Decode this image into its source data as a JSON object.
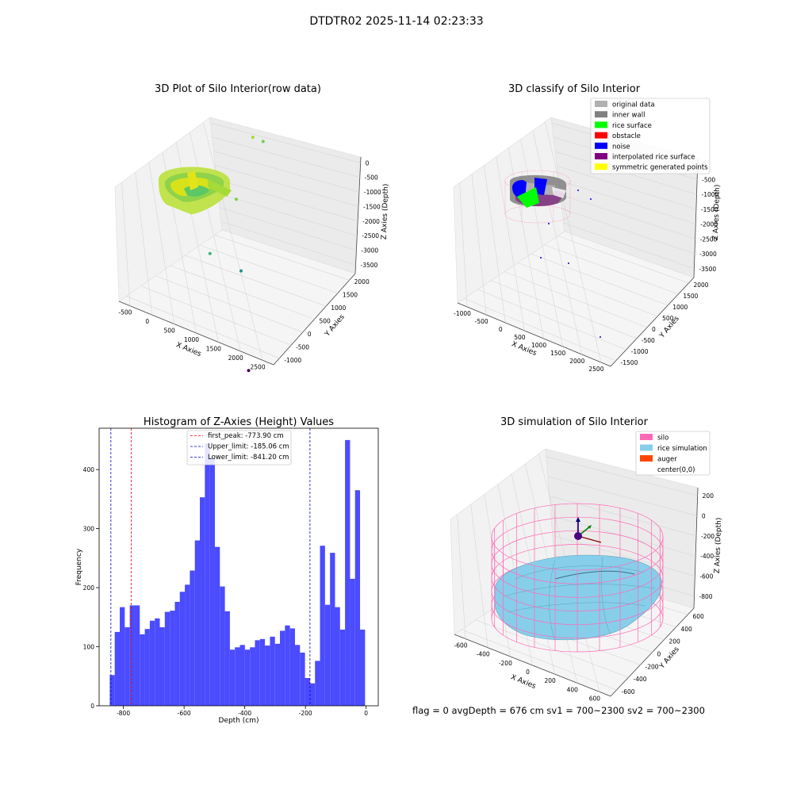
{
  "figure": {
    "suptitle": "DTDTR02 2025-11-14 02:23:33",
    "footer": "flag = 0     avgDepth = 676 cm  sv1 = 700~2300  sv2 = 700~2300"
  },
  "colors": {
    "hist_bar": "#4b4bff",
    "first_peak_line": "#ff0000",
    "limit_line": "#0000cc",
    "silo_pink": "#ff69b4",
    "rice_blue": "#87ceeb",
    "auger_orange": "#ff4500",
    "inner_wall_gray": "#808080",
    "original_gray": "#b0b0b0",
    "rice_surface_green": "#00ff00",
    "obstacle_red": "#ff0000",
    "noise_blue": "#0000ff",
    "interp_purple": "#800080",
    "sym_yellow": "#ffff00"
  },
  "chart_data": [
    {
      "type": "scatter",
      "title": "3D Plot of Silo Interior(row data)",
      "xlabel": "X Axies",
      "ylabel": "Y Axies",
      "zlabel": "Z Axies (Depth)",
      "x_ticks": [
        "-500",
        "0",
        "500",
        "1000",
        "1500",
        "2000",
        "2500"
      ],
      "y_ticks": [
        "-1000",
        "-500",
        "0",
        "500",
        "1000",
        "1500",
        "2000"
      ],
      "z_ticks": [
        "0",
        "-500",
        "-1000",
        "-1500",
        "-2000",
        "-2500",
        "-3000",
        "-3500"
      ],
      "outlier_points": [
        {
          "x": 950,
          "y": 1900,
          "z": -1000
        },
        {
          "x": 1150,
          "y": 1900,
          "z": -1000
        },
        {
          "x": 1000,
          "y": 1200,
          "z": -1900
        },
        {
          "x": 700,
          "y": 800,
          "z": -3000
        },
        {
          "x": 1250,
          "y": 900,
          "z": -3200
        },
        {
          "x": 2400,
          "y": -1000,
          "z": -3600
        }
      ]
    },
    {
      "type": "scatter",
      "title": "3D classify of Silo Interior",
      "xlabel": "X Axies",
      "ylabel": "Y Axies",
      "zlabel": "Z Axies (Depth)",
      "x_ticks": [
        "-1000",
        "-500",
        "0",
        "500",
        "1000",
        "1500",
        "2000",
        "2500"
      ],
      "y_ticks": [
        "-1500",
        "-1000",
        "-500",
        "0",
        "500",
        "1000",
        "1500",
        "2000"
      ],
      "z_ticks": [
        "0",
        "-500",
        "-1000",
        "-1500",
        "-2000",
        "-2500",
        "-3000",
        "-3500"
      ],
      "legend_position": "top-right",
      "legend": [
        {
          "label": "original data",
          "color": "#b0b0b0"
        },
        {
          "label": "inner wall",
          "color": "#808080"
        },
        {
          "label": "rice surface",
          "color": "#00ff00"
        },
        {
          "label": "obstacle",
          "color": "#ff0000"
        },
        {
          "label": "noise",
          "color": "#0000ff"
        },
        {
          "label": "interpolated rice surface",
          "color": "#800080"
        },
        {
          "label": "symmetric generated points",
          "color": "#ffff00"
        }
      ]
    },
    {
      "type": "bar",
      "title": "Histogram of Z-Axies (Height) Values",
      "xlabel": "Depth (cm)",
      "ylabel": "Frequency",
      "xlim": [
        -880,
        40
      ],
      "ylim": [
        0,
        470
      ],
      "x_ticks": [
        -800,
        -600,
        -400,
        -200,
        0
      ],
      "y_ticks": [
        0,
        100,
        200,
        300,
        400
      ],
      "bin_start": -845,
      "bin_width": 16.5,
      "values": [
        52,
        125,
        167,
        133,
        170,
        170,
        121,
        130,
        144,
        148,
        133,
        159,
        161,
        176,
        193,
        205,
        229,
        280,
        353,
        444,
        421,
        269,
        202,
        160,
        95,
        99,
        103,
        95,
        99,
        111,
        113,
        102,
        117,
        105,
        127,
        136,
        131,
        103,
        90,
        47,
        38,
        76,
        271,
        171,
        259,
        167,
        129,
        450,
        215,
        365,
        129
      ],
      "vlines": [
        {
          "label": "first_peak: -773.90 cm",
          "x": -773.9,
          "color": "#ff0000"
        },
        {
          "label": "Upper_limit: -185.06 cm",
          "x": -185.06,
          "color": "#0000cc"
        },
        {
          "label": "Lower_limit: -841.20 cm",
          "x": -841.2,
          "color": "#0000cc"
        }
      ],
      "legend_position": "top-center"
    },
    {
      "type": "surface",
      "title": "3D simulation of Silo Interior",
      "xlabel": "X Axies",
      "ylabel": "Y Axies",
      "zlabel": "Z Axies (Depth)",
      "x_ticks": [
        "-600",
        "-400",
        "-200",
        "0",
        "200",
        "400",
        "600"
      ],
      "y_ticks": [
        "-600",
        "-400",
        "-200",
        "0",
        "200",
        "400",
        "600"
      ],
      "z_ticks": [
        "200",
        "0",
        "-200",
        "-400",
        "-600",
        "-800"
      ],
      "legend_position": "top-right",
      "legend": [
        {
          "label": "silo",
          "color": "#ff69b4"
        },
        {
          "label": "rice simulation",
          "color": "#87ceeb"
        },
        {
          "label": "auger",
          "color": "#ff4500"
        },
        {
          "label": "center(0,0)",
          "color": ""
        }
      ]
    }
  ]
}
